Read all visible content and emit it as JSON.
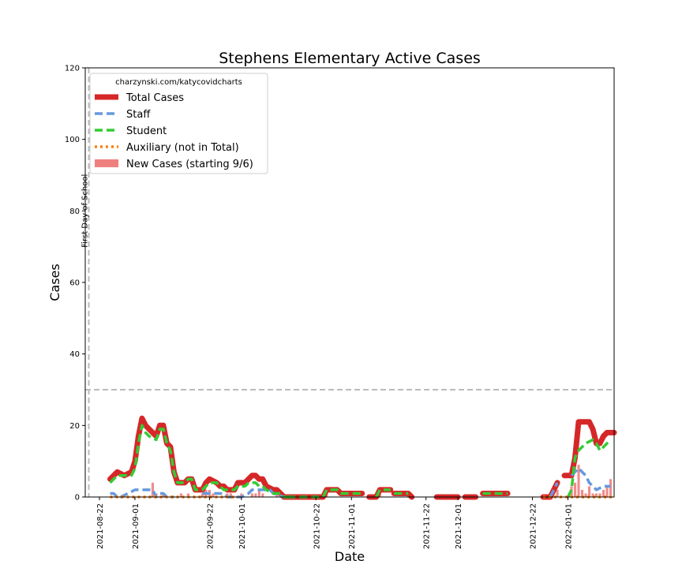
{
  "chart_data": {
    "type": "line",
    "title": "Stephens Elementary Active Cases",
    "xlabel": "Date",
    "ylabel": "Cases",
    "ylim": [
      0,
      120
    ],
    "yticks": [
      0,
      20,
      40,
      60,
      80,
      100,
      120
    ],
    "xlim": [
      "2021-08-18",
      "2022-01-14"
    ],
    "xticks": [
      "2021-08-22",
      "2021-09-01",
      "2021-09-22",
      "2021-10-01",
      "2021-10-22",
      "2021-11-01",
      "2021-11-22",
      "2021-12-01",
      "2021-12-22",
      "2022-01-01"
    ],
    "legend_title": "charzynski.com/katycovidcharts",
    "legend_position": "upper-left",
    "grid": false,
    "threshold_line": {
      "value": 30,
      "color": "#bbbbbb"
    },
    "first_day_line": {
      "date": "2021-08-19",
      "label": "First Day of School",
      "color": "#bbbbbb"
    },
    "series": [
      {
        "name": "Total Cases",
        "color": "#d62728",
        "style": "solid",
        "segments": [
          [
            [
              "2021-08-25",
              5
            ],
            [
              "2021-08-27",
              7
            ],
            [
              "2021-08-29",
              6
            ],
            [
              "2021-08-31",
              7
            ],
            [
              "2021-09-01",
              10
            ],
            [
              "2021-09-02",
              17
            ],
            [
              "2021-09-03",
              22
            ],
            [
              "2021-09-04",
              20
            ],
            [
              "2021-09-05",
              19
            ],
            [
              "2021-09-07",
              17
            ],
            [
              "2021-09-08",
              20
            ],
            [
              "2021-09-09",
              20
            ],
            [
              "2021-09-10",
              15
            ],
            [
              "2021-09-11",
              14
            ],
            [
              "2021-09-12",
              7
            ],
            [
              "2021-09-13",
              4
            ],
            [
              "2021-09-15",
              4
            ],
            [
              "2021-09-16",
              5
            ],
            [
              "2021-09-17",
              5
            ],
            [
              "2021-09-18",
              2
            ],
            [
              "2021-09-20",
              2
            ],
            [
              "2021-09-21",
              4
            ],
            [
              "2021-09-22",
              5
            ],
            [
              "2021-09-24",
              4
            ],
            [
              "2021-09-25",
              3
            ],
            [
              "2021-09-26",
              3
            ],
            [
              "2021-09-27",
              2
            ],
            [
              "2021-09-29",
              2
            ],
            [
              "2021-09-30",
              4
            ],
            [
              "2021-10-02",
              4
            ],
            [
              "2021-10-03",
              5
            ],
            [
              "2021-10-04",
              6
            ],
            [
              "2021-10-05",
              6
            ],
            [
              "2021-10-06",
              5
            ],
            [
              "2021-10-07",
              5
            ],
            [
              "2021-10-08",
              3
            ],
            [
              "2021-10-10",
              2
            ],
            [
              "2021-10-11",
              2
            ],
            [
              "2021-10-12",
              1
            ],
            [
              "2021-10-13",
              0
            ],
            [
              "2021-10-14",
              0
            ]
          ],
          [
            [
              "2021-10-14",
              0
            ],
            [
              "2021-10-24",
              0
            ],
            [
              "2021-10-25",
              2
            ],
            [
              "2021-10-28",
              2
            ],
            [
              "2021-10-29",
              1
            ],
            [
              "2021-11-04",
              1
            ]
          ],
          [
            [
              "2021-11-06",
              0
            ],
            [
              "2021-11-08",
              0
            ],
            [
              "2021-11-09",
              2
            ],
            [
              "2021-11-12",
              2
            ]
          ],
          [
            [
              "2021-11-13",
              1
            ],
            [
              "2021-11-17",
              1
            ],
            [
              "2021-11-18",
              0
            ]
          ],
          [
            [
              "2021-11-25",
              0
            ],
            [
              "2021-12-01",
              0
            ]
          ],
          [
            [
              "2021-12-03",
              0
            ],
            [
              "2021-12-06",
              0
            ]
          ],
          [
            [
              "2021-12-08",
              1
            ],
            [
              "2021-12-15",
              1
            ]
          ],
          [
            [
              "2021-12-25",
              0
            ],
            [
              "2021-12-27",
              0
            ],
            [
              "2021-12-29",
              4
            ]
          ],
          [
            [
              "2021-12-31",
              6
            ],
            [
              "2022-01-02",
              6
            ],
            [
              "2022-01-03",
              11
            ],
            [
              "2022-01-04",
              21
            ],
            [
              "2022-01-06",
              21
            ],
            [
              "2022-01-07",
              21
            ],
            [
              "2022-01-08",
              19
            ],
            [
              "2022-01-09",
              15
            ],
            [
              "2022-01-10",
              15
            ],
            [
              "2022-01-11",
              17
            ],
            [
              "2022-01-12",
              18
            ],
            [
              "2022-01-14",
              18
            ]
          ]
        ]
      },
      {
        "name": "Staff",
        "color": "#6699dd",
        "style": "dashed",
        "segments": [
          [
            [
              "2021-08-25",
              1
            ],
            [
              "2021-08-26",
              1
            ],
            [
              "2021-08-27",
              0
            ],
            [
              "2021-08-28",
              0
            ],
            [
              "2021-08-30",
              1
            ],
            [
              "2021-09-01",
              2
            ],
            [
              "2021-09-06",
              2
            ],
            [
              "2021-09-07",
              0
            ],
            [
              "2021-09-08",
              1
            ],
            [
              "2021-09-09",
              1
            ],
            [
              "2021-09-10",
              0
            ],
            [
              "2021-09-12",
              0
            ]
          ],
          [
            [
              "2021-09-20",
              1
            ],
            [
              "2021-09-26",
              1
            ],
            [
              "2021-09-27",
              0
            ],
            [
              "2021-10-01",
              0
            ],
            [
              "2021-10-03",
              1
            ],
            [
              "2021-10-04",
              2
            ],
            [
              "2021-10-09",
              2
            ],
            [
              "2021-10-10",
              1
            ],
            [
              "2021-10-13",
              0
            ]
          ],
          [
            [
              "2021-12-27",
              0
            ],
            [
              "2021-12-29",
              4
            ]
          ],
          [
            [
              "2022-01-02",
              6
            ],
            [
              "2022-01-04",
              8
            ],
            [
              "2022-01-06",
              6
            ],
            [
              "2022-01-07",
              4
            ],
            [
              "2022-01-09",
              2
            ],
            [
              "2022-01-11",
              3
            ],
            [
              "2022-01-13",
              3
            ]
          ]
        ]
      },
      {
        "name": "Student",
        "color": "#33cc33",
        "style": "dashed",
        "segments": [
          [
            [
              "2021-08-25",
              4
            ],
            [
              "2021-08-27",
              6
            ],
            [
              "2021-08-29",
              6
            ],
            [
              "2021-08-31",
              6
            ],
            [
              "2021-09-01",
              8
            ],
            [
              "2021-09-02",
              15
            ],
            [
              "2021-09-03",
              20
            ],
            [
              "2021-09-04",
              18
            ],
            [
              "2021-09-05",
              17
            ],
            [
              "2021-09-07",
              16
            ],
            [
              "2021-09-08",
              19
            ],
            [
              "2021-09-09",
              19
            ],
            [
              "2021-09-10",
              15
            ],
            [
              "2021-09-11",
              13
            ],
            [
              "2021-09-12",
              7
            ],
            [
              "2021-09-13",
              4
            ],
            [
              "2021-09-15",
              4
            ],
            [
              "2021-09-16",
              5
            ],
            [
              "2021-09-17",
              5
            ],
            [
              "2021-09-18",
              2
            ],
            [
              "2021-09-20",
              2
            ],
            [
              "2021-09-21",
              3
            ],
            [
              "2021-09-22",
              4
            ],
            [
              "2021-09-24",
              4
            ],
            [
              "2021-09-25",
              3
            ],
            [
              "2021-09-26",
              2
            ],
            [
              "2021-09-27",
              2
            ],
            [
              "2021-09-29",
              2
            ],
            [
              "2021-09-30",
              3
            ],
            [
              "2021-10-02",
              3
            ],
            [
              "2021-10-03",
              4
            ],
            [
              "2021-10-04",
              4
            ],
            [
              "2021-10-05",
              4
            ],
            [
              "2021-10-06",
              3
            ],
            [
              "2021-10-07",
              3
            ],
            [
              "2021-10-08",
              2
            ],
            [
              "2021-10-10",
              1
            ],
            [
              "2021-10-11",
              1
            ],
            [
              "2021-10-12",
              1
            ],
            [
              "2021-10-13",
              0
            ],
            [
              "2021-10-14",
              0
            ]
          ],
          [
            [
              "2021-10-14",
              0
            ],
            [
              "2021-10-24",
              0
            ],
            [
              "2021-10-25",
              2
            ],
            [
              "2021-10-28",
              2
            ],
            [
              "2021-10-29",
              1
            ],
            [
              "2021-11-04",
              1
            ]
          ],
          [
            [
              "2021-11-08",
              0
            ],
            [
              "2021-11-09",
              2
            ],
            [
              "2021-11-12",
              2
            ]
          ],
          [
            [
              "2021-11-13",
              1
            ],
            [
              "2021-11-17",
              1
            ]
          ],
          [
            [
              "2021-12-08",
              1
            ],
            [
              "2021-12-15",
              1
            ]
          ],
          [
            [
              "2022-01-01",
              0
            ],
            [
              "2022-01-02",
              2
            ],
            [
              "2022-01-03",
              11
            ],
            [
              "2022-01-04",
              13
            ],
            [
              "2022-01-06",
              15
            ],
            [
              "2022-01-08",
              16
            ],
            [
              "2022-01-09",
              15
            ],
            [
              "2022-01-10",
              13
            ],
            [
              "2022-01-12",
              15
            ],
            [
              "2022-01-13",
              16
            ]
          ]
        ]
      },
      {
        "name": "Auxiliary (not in Total)",
        "color": "#ff7f0e",
        "style": "dotted",
        "segments": [
          [
            [
              "2021-08-25",
              0
            ],
            [
              "2021-09-30",
              0
            ]
          ],
          [
            [
              "2021-12-25",
              0
            ],
            [
              "2022-01-14",
              0
            ]
          ]
        ]
      }
    ],
    "new_cases": {
      "name": "New Cases (starting 9/6)",
      "color": "#f08080",
      "bars": [
        [
          "2021-09-06",
          4
        ],
        [
          "2021-09-07",
          1
        ],
        [
          "2021-09-09",
          1
        ],
        [
          "2021-09-14",
          1
        ],
        [
          "2021-09-16",
          1
        ],
        [
          "2021-09-20",
          1
        ],
        [
          "2021-09-21",
          2
        ],
        [
          "2021-09-22",
          2
        ],
        [
          "2021-09-23",
          1
        ],
        [
          "2021-09-27",
          1
        ],
        [
          "2021-09-28",
          1
        ],
        [
          "2021-10-01",
          1
        ],
        [
          "2021-10-04",
          1
        ],
        [
          "2021-10-05",
          1
        ],
        [
          "2021-10-06",
          2
        ],
        [
          "2021-10-07",
          1
        ],
        [
          "2021-10-11",
          1
        ],
        [
          "2021-10-25",
          2
        ],
        [
          "2021-11-09",
          1
        ],
        [
          "2021-12-29",
          2
        ],
        [
          "2022-01-02",
          3
        ],
        [
          "2022-01-03",
          4
        ],
        [
          "2022-01-04",
          9
        ],
        [
          "2022-01-05",
          2
        ],
        [
          "2022-01-06",
          1
        ],
        [
          "2022-01-07",
          3
        ],
        [
          "2022-01-08",
          1
        ],
        [
          "2022-01-09",
          1
        ],
        [
          "2022-01-10",
          1
        ],
        [
          "2022-01-11",
          2
        ],
        [
          "2022-01-12",
          3
        ],
        [
          "2022-01-13",
          5
        ]
      ]
    }
  }
}
